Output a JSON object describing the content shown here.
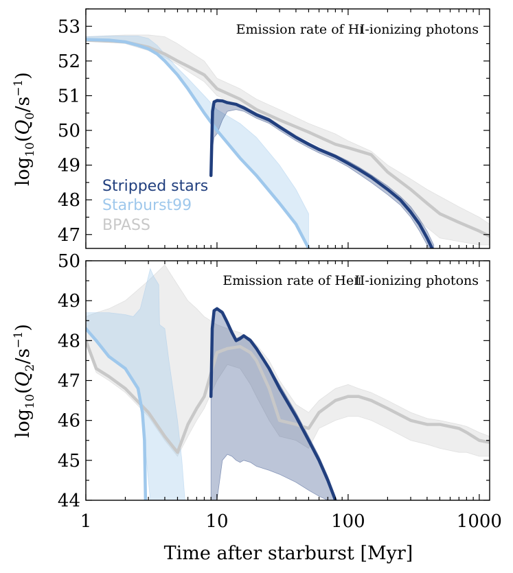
{
  "chart_data": [
    {
      "type": "line",
      "title": "Emission rate of HI-ionizing photons",
      "xlabel": "Time after starburst [Myr]",
      "ylabel": "log10(Q0/s^-1)",
      "xscale": "log",
      "xlim": [
        1,
        1200
      ],
      "ylim": [
        46.6,
        53.5
      ],
      "yticks": [
        47,
        48,
        49,
        50,
        51,
        52,
        53
      ],
      "xticks": [
        1,
        10,
        100,
        1000
      ],
      "legend": "left-middle",
      "series": [
        {
          "name": "Stripped stars",
          "color": "#213f7e",
          "x": [
            9.0,
            9.25,
            9.5,
            10.0,
            11.0,
            12.0,
            14.0,
            16.0,
            20.0,
            25.0,
            30.0,
            40.0,
            50.0,
            60.0,
            80.0,
            100.0,
            120.0,
            150.0,
            200.0,
            250.0,
            300.0,
            350.0,
            400.0,
            450.0
          ],
          "y": [
            48.7,
            50.55,
            50.82,
            50.86,
            50.85,
            50.8,
            50.75,
            50.65,
            50.45,
            50.3,
            50.1,
            49.8,
            49.6,
            49.45,
            49.25,
            49.05,
            48.88,
            48.65,
            48.3,
            48.0,
            47.65,
            47.3,
            46.9,
            46.5
          ],
          "band_upper": [
            48.7,
            50.6,
            50.85,
            50.9,
            50.88,
            50.82,
            50.78,
            50.7,
            50.5,
            50.35,
            50.15,
            49.85,
            49.65,
            49.5,
            49.3,
            49.12,
            48.95,
            48.72,
            48.4,
            48.1,
            47.8,
            47.45,
            47.1,
            46.7
          ],
          "band_lower": [
            48.7,
            49.5,
            49.8,
            49.9,
            50.3,
            50.55,
            50.6,
            50.55,
            50.35,
            50.2,
            50.0,
            49.7,
            49.5,
            49.35,
            49.15,
            48.95,
            48.75,
            48.5,
            48.15,
            47.85,
            47.5,
            47.1,
            46.7,
            46.4
          ]
        },
        {
          "name": "Starburst99",
          "color": "#9fc8ec",
          "x": [
            1.0,
            1.5,
            2.0,
            2.5,
            3.0,
            3.5,
            4.0,
            5.0,
            6.0,
            8.0,
            10.0,
            15.0,
            20.0,
            30.0,
            40.0,
            50.0
          ],
          "y": [
            52.62,
            52.6,
            52.55,
            52.45,
            52.35,
            52.2,
            52.0,
            51.6,
            51.2,
            50.5,
            50.0,
            49.2,
            48.7,
            47.9,
            47.3,
            46.6
          ],
          "band_upper": [
            52.7,
            52.72,
            52.72,
            52.72,
            52.65,
            52.45,
            52.2,
            51.8,
            51.5,
            51.0,
            50.6,
            50.2,
            49.8,
            49.0,
            48.3,
            47.6
          ],
          "band_lower": [
            52.62,
            52.6,
            52.55,
            52.45,
            52.35,
            52.2,
            52.0,
            51.6,
            51.2,
            50.5,
            50.0,
            49.2,
            48.7,
            47.9,
            47.3,
            46.6
          ]
        },
        {
          "name": "BPASS",
          "color": "#c8c8c8",
          "x": [
            1.0,
            2.0,
            3.0,
            4.0,
            5.0,
            6.0,
            8.0,
            10.0,
            15.0,
            20.0,
            30.0,
            50.0,
            80.0,
            100.0,
            150.0,
            200.0,
            300.0,
            400.0,
            500.0,
            700.0,
            1000.0,
            1200.0
          ],
          "y": [
            52.6,
            52.55,
            52.4,
            52.2,
            52.0,
            51.85,
            51.6,
            51.2,
            50.9,
            50.6,
            50.3,
            49.95,
            49.6,
            49.5,
            49.3,
            48.8,
            48.3,
            47.9,
            47.6,
            47.35,
            47.1,
            46.95
          ],
          "band_upper": [
            52.7,
            52.75,
            52.75,
            52.7,
            52.5,
            52.3,
            52.0,
            51.5,
            51.2,
            50.9,
            50.6,
            50.2,
            49.9,
            49.7,
            49.4,
            49.0,
            48.6,
            48.3,
            48.1,
            47.8,
            47.5,
            47.3
          ],
          "band_lower": [
            52.6,
            52.5,
            52.3,
            52.1,
            51.9,
            51.7,
            51.4,
            51.0,
            50.7,
            50.4,
            50.1,
            49.7,
            49.3,
            49.1,
            48.7,
            48.3,
            47.6,
            47.2,
            46.9,
            46.8,
            46.7,
            46.7
          ]
        }
      ]
    },
    {
      "type": "line",
      "title": "Emission rate of HeII-ionizing photons",
      "xlabel": "Time after starburst [Myr]",
      "ylabel": "log10(Q2/s^-1)",
      "xscale": "log",
      "xlim": [
        1,
        1200
      ],
      "ylim": [
        44,
        50
      ],
      "yticks": [
        44,
        45,
        46,
        47,
        48,
        49,
        50
      ],
      "xticks": [
        1,
        10,
        100,
        1000
      ],
      "series": [
        {
          "name": "Stripped stars",
          "color": "#213f7e",
          "x": [
            9.0,
            9.2,
            9.5,
            10.0,
            11.0,
            12.0,
            13.0,
            14.0,
            15.0,
            16.0,
            18.0,
            20.0,
            25.0,
            30.0,
            40.0,
            50.0,
            60.0,
            70.0,
            80.0
          ],
          "y": [
            46.6,
            48.3,
            48.75,
            48.8,
            48.7,
            48.45,
            48.2,
            48.0,
            48.05,
            48.12,
            48.0,
            47.8,
            47.3,
            46.8,
            46.1,
            45.5,
            45.0,
            44.5,
            44.0
          ],
          "band_upper": [
            46.6,
            48.3,
            48.75,
            48.82,
            48.75,
            48.5,
            48.25,
            48.05,
            48.1,
            48.15,
            48.05,
            47.85,
            47.35,
            46.9,
            46.2,
            45.6,
            45.1,
            44.6,
            44.1
          ],
          "band_lower": [
            44.0,
            44.0,
            44.0,
            44.0,
            45.0,
            45.15,
            45.1,
            45.0,
            44.95,
            45.0,
            44.95,
            44.85,
            44.75,
            44.65,
            44.45,
            44.25,
            44.1,
            44.0,
            44.0
          ]
        },
        {
          "name": "Starburst99",
          "color": "#9fc8ec",
          "x": [
            1.0,
            1.2,
            1.5,
            2.0,
            2.5,
            2.7,
            2.8,
            2.85
          ],
          "y": [
            48.3,
            48.0,
            47.6,
            47.3,
            46.8,
            46.2,
            45.5,
            44.0
          ],
          "band_upper": [
            48.7,
            48.7,
            48.65,
            48.6,
            48.8,
            49.8,
            49.6,
            49.4,
            48.4,
            48.3,
            47.5,
            46.0,
            45.0,
            44.0
          ],
          "band_x": [
            1.0,
            1.5,
            2.0,
            2.3,
            2.6,
            3.1,
            3.3,
            3.6,
            3.65,
            4.0,
            4.3,
            5.0,
            5.4,
            5.7
          ],
          "band_lower": [
            48.3,
            47.6,
            47.3,
            47.0,
            46.6,
            44.0,
            44.0,
            44.0,
            44.0,
            44.0,
            44.0,
            44.0,
            44.0,
            44.0
          ]
        },
        {
          "name": "BPASS",
          "color": "#c8c8c8",
          "x": [
            1.0,
            1.2,
            1.5,
            2.0,
            3.0,
            4.0,
            5.0,
            6.0,
            7.0,
            8.0,
            10.0,
            12.0,
            15.0,
            18.0,
            20.0,
            25.0,
            30.0,
            40.0,
            50.0,
            60.0,
            80.0,
            100.0,
            120.0,
            150.0,
            200.0,
            300.0,
            400.0,
            500.0,
            700.0,
            800.0,
            1000.0,
            1200.0
          ],
          "y": [
            48.0,
            47.3,
            47.1,
            46.8,
            46.2,
            45.6,
            45.2,
            45.9,
            46.3,
            46.6,
            47.7,
            47.8,
            47.85,
            47.7,
            47.5,
            46.8,
            46.0,
            45.9,
            45.8,
            46.2,
            46.5,
            46.6,
            46.6,
            46.5,
            46.3,
            46.0,
            45.9,
            45.9,
            45.8,
            45.7,
            45.5,
            45.45
          ],
          "band_upper": [
            48.6,
            48.7,
            48.8,
            49.0,
            49.5,
            49.9,
            49.4,
            49.0,
            48.8,
            48.6,
            48.4,
            48.3,
            48.2,
            48.05,
            47.9,
            47.5,
            47.0,
            46.4,
            46.2,
            46.5,
            46.8,
            46.9,
            46.8,
            46.7,
            46.5,
            46.2,
            46.05,
            46.0,
            45.9,
            45.85,
            45.7,
            45.6
          ],
          "band_lower": [
            47.9,
            47.2,
            47.0,
            46.7,
            46.1,
            45.5,
            45.1,
            45.6,
            46.0,
            46.3,
            47.0,
            47.4,
            47.3,
            46.9,
            46.6,
            46.0,
            45.6,
            45.5,
            45.3,
            45.8,
            46.0,
            46.1,
            46.1,
            46.0,
            45.8,
            45.5,
            45.4,
            45.3,
            45.2,
            45.2,
            45.1,
            45.1
          ]
        }
      ]
    }
  ],
  "text": {
    "top_title_prefix": "Emission rate of H",
    "top_title_suffix": "I-ionizing photons",
    "bottom_title_prefix": "Emission rate of He",
    "bottom_title_suffix": "II-ionizing photons",
    "top_ylabel_log": "log",
    "top_ylabel_sub": "10",
    "top_ylabel_q": "Q",
    "top_ylabel_qsub": "0",
    "top_ylabel_unit": "/s",
    "top_ylabel_exp": "−1",
    "bottom_ylabel_log": "log",
    "bottom_ylabel_sub": "10",
    "bottom_ylabel_q": "Q",
    "bottom_ylabel_qsub": "2",
    "bottom_ylabel_unit": "/s",
    "bottom_ylabel_exp": "−1",
    "xlabel": "Time after starburst [Myr]",
    "xtick_labels": [
      "1",
      "10",
      "100",
      "1000"
    ],
    "legend": [
      "Stripped stars",
      "Starburst99",
      "BPASS"
    ]
  }
}
